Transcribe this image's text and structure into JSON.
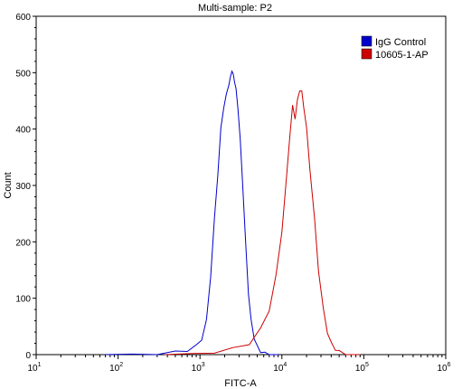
{
  "chart_data": {
    "type": "line",
    "title": "Multi-sample: P2",
    "xlabel": "FITC-A",
    "ylabel": "Count",
    "x_scale": "log",
    "xlim": [
      10,
      1000000
    ],
    "ylim": [
      0,
      600
    ],
    "x_tick_labels": [
      {
        "base": "10",
        "exp": "1",
        "value": 10
      },
      {
        "base": "10",
        "exp": "2",
        "value": 100
      },
      {
        "base": "10",
        "exp": "3",
        "value": 1000
      },
      {
        "base": "10",
        "exp": "4",
        "value": 10000
      },
      {
        "base": "10",
        "exp": "5",
        "value": 100000
      },
      {
        "base": "10",
        "exp": "6",
        "value": 1000000
      }
    ],
    "y_ticks": [
      0,
      100,
      200,
      300,
      400,
      500,
      600
    ],
    "grid": false,
    "legend_position": "top-right",
    "series": [
      {
        "name": "IgG Control",
        "color": "#0000cc",
        "x": [
          150,
          300,
          500,
          700,
          900,
          1050,
          1200,
          1350,
          1500,
          1650,
          1800,
          1950,
          2100,
          2250,
          2350,
          2450,
          2550,
          2650,
          2750,
          2900,
          3100,
          3300,
          3600,
          3900,
          4200,
          4600,
          5000,
          5500,
          6200,
          7000
        ],
        "y": [
          1,
          2,
          4,
          8,
          15,
          28,
          60,
          140,
          240,
          320,
          400,
          440,
          460,
          480,
          490,
          505,
          495,
          485,
          470,
          440,
          380,
          310,
          200,
          110,
          60,
          30,
          14,
          6,
          2,
          0
        ]
      },
      {
        "name": "10605-1-AP",
        "color": "#cc0000",
        "x": [
          800,
          1500,
          2500,
          4000,
          5500,
          7000,
          8500,
          10000,
          11500,
          12500,
          13500,
          14500,
          15500,
          16500,
          17500,
          18500,
          20000,
          22000,
          25000,
          28000,
          32000,
          36000,
          40000,
          45000,
          50000,
          60000,
          70000
        ],
        "y": [
          2,
          5,
          10,
          20,
          45,
          80,
          140,
          220,
          320,
          390,
          440,
          420,
          450,
          470,
          465,
          440,
          400,
          330,
          240,
          150,
          80,
          40,
          20,
          10,
          5,
          2,
          0
        ]
      }
    ]
  }
}
